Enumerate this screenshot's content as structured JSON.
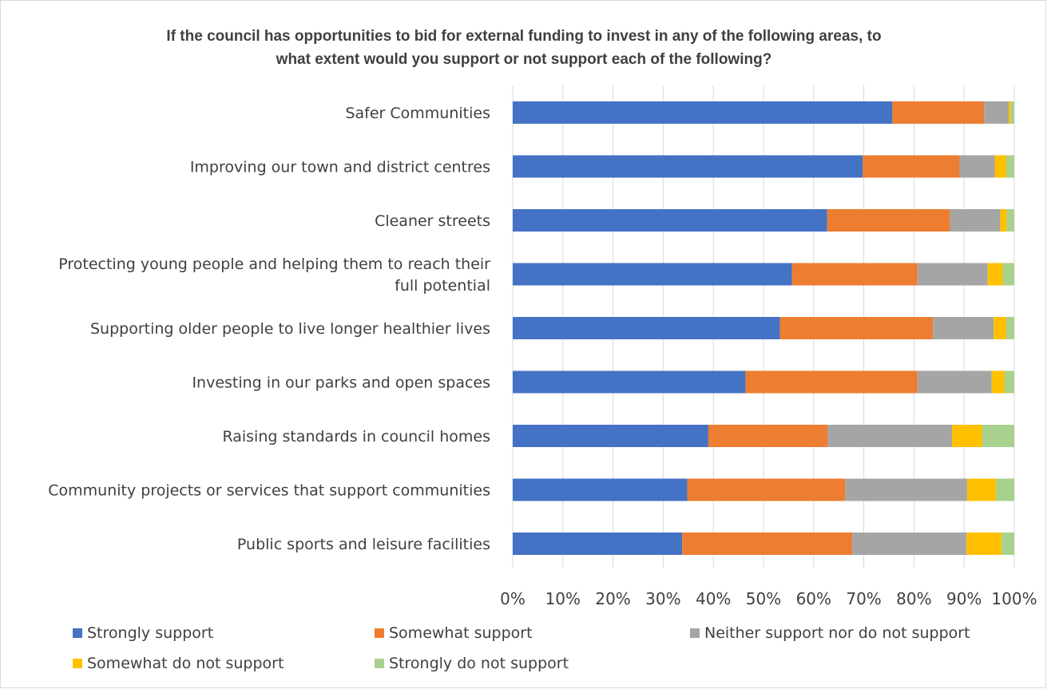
{
  "chart_data": {
    "type": "bar",
    "orientation": "horizontal",
    "stacked": "100%",
    "title_lines": [
      "If the council has opportunities to bid for external funding to invest in any of the following areas, to",
      "what extent would you support or not support each of the following?"
    ],
    "categories": [
      [
        "Safer Communities"
      ],
      [
        "Improving our town and district centres"
      ],
      [
        "Cleaner streets"
      ],
      [
        "Protecting young people and helping them to reach their",
        "full potential"
      ],
      [
        "Supporting older people to live longer healthier lives"
      ],
      [
        "Investing in our parks and open spaces"
      ],
      [
        "Raising standards in council homes"
      ],
      [
        "Community projects or services that support communities"
      ],
      [
        "Public sports and leisure facilities"
      ]
    ],
    "series": [
      {
        "name": "Strongly support",
        "color": "#4472c4",
        "values": [
          75.7,
          69.8,
          62.7,
          55.7,
          53.3,
          46.4,
          39.0,
          34.8,
          33.8
        ]
      },
      {
        "name": "Somewhat support",
        "color": "#ed7d31",
        "values": [
          18.3,
          19.3,
          24.5,
          25.0,
          30.5,
          34.3,
          23.8,
          31.5,
          33.9
        ]
      },
      {
        "name": "Neither support nor do not support",
        "color": "#a5a5a5",
        "values": [
          4.9,
          7.0,
          10.0,
          14.0,
          12.1,
          14.8,
          24.8,
          24.3,
          22.8
        ]
      },
      {
        "name": "Somewhat do not support",
        "color": "#ffc000",
        "values": [
          0.4,
          2.3,
          1.3,
          3.0,
          2.5,
          2.6,
          6.0,
          5.8,
          7.0
        ]
      },
      {
        "name": "Strongly do not support",
        "color": "#a9d18e",
        "values": [
          0.7,
          1.6,
          1.5,
          2.3,
          1.6,
          1.9,
          6.4,
          3.6,
          2.5
        ]
      }
    ],
    "xlim": [
      0,
      100
    ],
    "x_ticks": [
      0,
      10,
      20,
      30,
      40,
      50,
      60,
      70,
      80,
      90,
      100
    ],
    "x_tick_labels": [
      "0%",
      "10%",
      "20%",
      "30%",
      "40%",
      "50%",
      "60%",
      "70%",
      "80%",
      "90%",
      "100%"
    ],
    "grid": "vertical",
    "legend_position": "bottom",
    "gridline_color": "#d9d9d9"
  }
}
